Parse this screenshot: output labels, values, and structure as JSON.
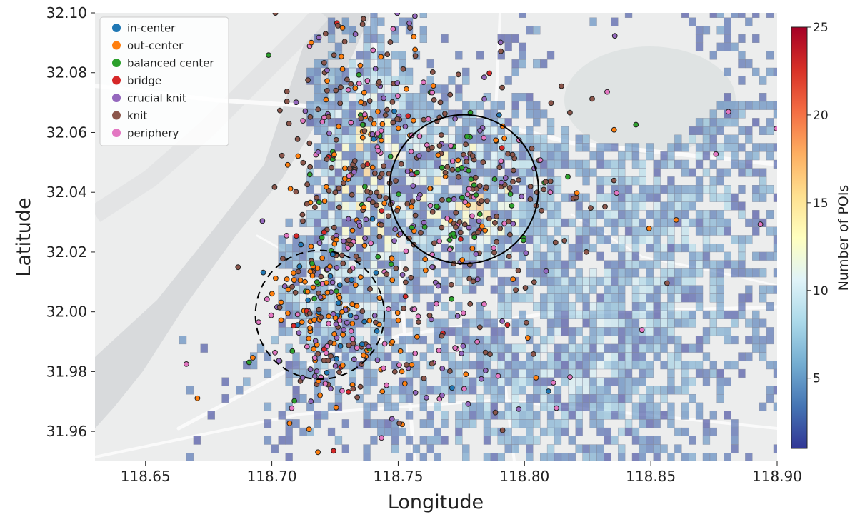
{
  "chart_data": {
    "type": "scatter",
    "xlabel": "Longitude",
    "ylabel": "Latitude",
    "xlim": [
      118.63,
      118.9
    ],
    "ylim": [
      31.95,
      32.1
    ],
    "xticks": [
      "118.65",
      "118.70",
      "118.75",
      "118.80",
      "118.85",
      "118.90"
    ],
    "xtick_values": [
      118.65,
      118.7,
      118.75,
      118.8,
      118.85,
      118.9
    ],
    "yticks": [
      "31.96",
      "31.98",
      "32.00",
      "32.02",
      "32.04",
      "32.06",
      "32.08",
      "32.10"
    ],
    "ytick_values": [
      31.96,
      31.98,
      32.0,
      32.02,
      32.04,
      32.06,
      32.08,
      32.1
    ],
    "grid": false,
    "legend_position": "top-left",
    "legend": [
      {
        "name": "in-center",
        "color": "#1f77b4"
      },
      {
        "name": "out-center",
        "color": "#ff7f0e"
      },
      {
        "name": "balanced center",
        "color": "#2ca02c"
      },
      {
        "name": "bridge",
        "color": "#d62728"
      },
      {
        "name": "crucial knit",
        "color": "#9467bd"
      },
      {
        "name": "knit",
        "color": "#8c564b"
      },
      {
        "name": "periphery",
        "color": "#e377c2"
      }
    ],
    "colorbar": {
      "label": "Number of POIs",
      "min": 1,
      "max": 25,
      "ticks": [
        "5",
        "10",
        "15",
        "20",
        "25"
      ],
      "tick_values": [
        5,
        10,
        15,
        20,
        25
      ],
      "colormap": "RdYlBu_r"
    },
    "circles": [
      {
        "style": "solid",
        "center": [
          118.776,
          32.041
        ],
        "radius_deg": 0.0295
      },
      {
        "style": "dashed",
        "center": [
          118.719,
          31.999
        ],
        "radius_deg": 0.0255
      }
    ],
    "grid_cell_deg": 0.0028
  },
  "colors": {
    "map_bg": "#eceded",
    "river": "#d6d8da",
    "road": "#fafafa",
    "cell_low": "#7b80b7",
    "cell_edge": "#8a8fa0"
  }
}
